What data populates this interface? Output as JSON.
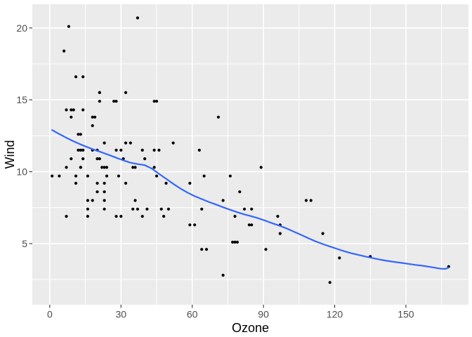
{
  "chart_data": {
    "type": "scatter",
    "title": "",
    "xlabel": "Ozone",
    "ylabel": "Wind",
    "legend": "none",
    "grid": "on",
    "xlim": [
      -7.35,
      176.35
    ],
    "ylim": [
      0.75,
      21.65
    ],
    "x_ticks": [
      0,
      30,
      60,
      90,
      120,
      150
    ],
    "x_tick_labels": [
      "0",
      "30",
      "60",
      "90",
      "120",
      "150"
    ],
    "x_minor_ticks": [
      15,
      45,
      75,
      105,
      135,
      165
    ],
    "y_ticks": [
      5,
      10,
      15,
      20
    ],
    "y_tick_labels": [
      "5",
      "10",
      "15",
      "20"
    ],
    "y_minor_ticks": [
      2.5,
      7.5,
      12.5,
      17.5
    ],
    "series": [
      {
        "name": "observations",
        "geom": "point",
        "points": [
          [
            41,
            7.4
          ],
          [
            36,
            8
          ],
          [
            12,
            12.6
          ],
          [
            18,
            11.5
          ],
          [
            28,
            14.9
          ],
          [
            23,
            8.6
          ],
          [
            19,
            13.8
          ],
          [
            8,
            20.1
          ],
          [
            7,
            6.9
          ],
          [
            16,
            9.7
          ],
          [
            11,
            9.2
          ],
          [
            14,
            10.9
          ],
          [
            18,
            13.2
          ],
          [
            14,
            11.5
          ],
          [
            34,
            12
          ],
          [
            6,
            18.4
          ],
          [
            30,
            11.5
          ],
          [
            11,
            9.7
          ],
          [
            1,
            9.7
          ],
          [
            11,
            16.6
          ],
          [
            4,
            9.7
          ],
          [
            32,
            12
          ],
          [
            23,
            12
          ],
          [
            45,
            14.9
          ],
          [
            115,
            5.7
          ],
          [
            37,
            7.4
          ],
          [
            29,
            9.7
          ],
          [
            71,
            13.8
          ],
          [
            39,
            11.5
          ],
          [
            23,
            8
          ],
          [
            21,
            14.9
          ],
          [
            37,
            20.7
          ],
          [
            20,
            9.2
          ],
          [
            12,
            11.5
          ],
          [
            13,
            10.3
          ],
          [
            135,
            4.1
          ],
          [
            49,
            9.2
          ],
          [
            32,
            9.2
          ],
          [
            64,
            4.6
          ],
          [
            40,
            10.9
          ],
          [
            77,
            5.1
          ],
          [
            97,
            6.3
          ],
          [
            97,
            5.7
          ],
          [
            85,
            7.4
          ],
          [
            10,
            14.3
          ],
          [
            27,
            14.9
          ],
          [
            7,
            14.3
          ],
          [
            48,
            6.9
          ],
          [
            35,
            10.3
          ],
          [
            61,
            6.3
          ],
          [
            79,
            5.1
          ],
          [
            63,
            11.5
          ],
          [
            16,
            6.9
          ],
          [
            80,
            8.6
          ],
          [
            108,
            8
          ],
          [
            20,
            8.6
          ],
          [
            52,
            12
          ],
          [
            82,
            7.4
          ],
          [
            50,
            7.4
          ],
          [
            64,
            7.4
          ],
          [
            59,
            9.2
          ],
          [
            39,
            6.9
          ],
          [
            9,
            13.8
          ],
          [
            16,
            7.4
          ],
          [
            78,
            6.9
          ],
          [
            35,
            7.4
          ],
          [
            66,
            4.6
          ],
          [
            122,
            4
          ],
          [
            89,
            10.3
          ],
          [
            110,
            8
          ],
          [
            44,
            11.5
          ],
          [
            28,
            11.5
          ],
          [
            65,
            9.7
          ],
          [
            22,
            10.3
          ],
          [
            59,
            6.3
          ],
          [
            23,
            7.4
          ],
          [
            31,
            10.9
          ],
          [
            44,
            10.3
          ],
          [
            21,
            15.5
          ],
          [
            9,
            14.3
          ],
          [
            45,
            9.7
          ],
          [
            168,
            3.4
          ],
          [
            73,
            8
          ],
          [
            76,
            9.7
          ],
          [
            118,
            2.3
          ],
          [
            84,
            6.3
          ],
          [
            85,
            6.3
          ],
          [
            96,
            6.9
          ],
          [
            78,
            5.1
          ],
          [
            73,
            2.8
          ],
          [
            91,
            4.6
          ],
          [
            47,
            7.4
          ],
          [
            32,
            15.5
          ],
          [
            20,
            10.9
          ],
          [
            23,
            10.3
          ],
          [
            21,
            10.9
          ],
          [
            24,
            9.7
          ],
          [
            44,
            14.9
          ],
          [
            21,
            15.5
          ],
          [
            28,
            6.9
          ],
          [
            9,
            10.9
          ],
          [
            13,
            11.5
          ],
          [
            46,
            11.5
          ],
          [
            18,
            13.8
          ],
          [
            13,
            10.3
          ],
          [
            24,
            10.3
          ],
          [
            16,
            8
          ],
          [
            13,
            12.6
          ],
          [
            23,
            9.2
          ],
          [
            36,
            10.3
          ],
          [
            7,
            10.3
          ],
          [
            14,
            16.6
          ],
          [
            30,
            6.9
          ],
          [
            14,
            14.3
          ],
          [
            18,
            8
          ],
          [
            20,
            11.5
          ]
        ]
      },
      {
        "name": "loess-smooth",
        "geom": "line",
        "points": [
          [
            1,
            12.9
          ],
          [
            4,
            12.62
          ],
          [
            7,
            12.36
          ],
          [
            10,
            12.12
          ],
          [
            13,
            11.9
          ],
          [
            16,
            11.7
          ],
          [
            19,
            11.51
          ],
          [
            22,
            11.34
          ],
          [
            25,
            11.16
          ],
          [
            28,
            10.97
          ],
          [
            31,
            10.79
          ],
          [
            34,
            10.63
          ],
          [
            37,
            10.53
          ],
          [
            40,
            10.46
          ],
          [
            43,
            10.22
          ],
          [
            46,
            9.85
          ],
          [
            49,
            9.51
          ],
          [
            52,
            9.16
          ],
          [
            55,
            8.83
          ],
          [
            58,
            8.55
          ],
          [
            61,
            8.3
          ],
          [
            64,
            8.1
          ],
          [
            67,
            7.9
          ],
          [
            70,
            7.72
          ],
          [
            73,
            7.53
          ],
          [
            76,
            7.35
          ],
          [
            79,
            7.18
          ],
          [
            82,
            7.03
          ],
          [
            85,
            6.9
          ],
          [
            88,
            6.75
          ],
          [
            91,
            6.58
          ],
          [
            94,
            6.4
          ],
          [
            97,
            6.23
          ],
          [
            100,
            6.04
          ],
          [
            103,
            5.82
          ],
          [
            106,
            5.6
          ],
          [
            109,
            5.37
          ],
          [
            112,
            5.15
          ],
          [
            115,
            4.97
          ],
          [
            118,
            4.8
          ],
          [
            121,
            4.63
          ],
          [
            124,
            4.47
          ],
          [
            127,
            4.33
          ],
          [
            130,
            4.21
          ],
          [
            133,
            4.1
          ],
          [
            136,
            3.99
          ],
          [
            139,
            3.89
          ],
          [
            142,
            3.8
          ],
          [
            145,
            3.73
          ],
          [
            148,
            3.66
          ],
          [
            151,
            3.59
          ],
          [
            154,
            3.52
          ],
          [
            157,
            3.46
          ],
          [
            160,
            3.38
          ],
          [
            163,
            3.3
          ],
          [
            165,
            3.25
          ],
          [
            166.5,
            3.24
          ],
          [
            168,
            3.33
          ]
        ]
      }
    ],
    "colors": {
      "background": "#FFFFFF",
      "panel_background": "#EBEBEB",
      "grid": "#FFFFFF",
      "point": "#000000",
      "smooth_line": "#3366FF",
      "tick_mark": "#333333",
      "tick_label": "#4D4D4D",
      "axis_title": "#000000"
    }
  }
}
